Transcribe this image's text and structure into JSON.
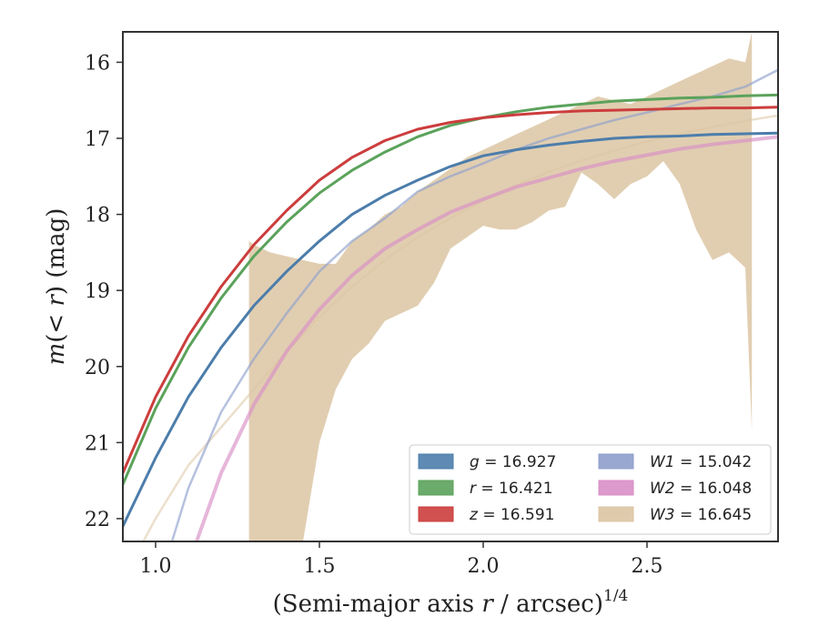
{
  "chart_data": {
    "type": "line",
    "title": "",
    "xlabel_pre": "(Semi-major axis ",
    "xlabel_var": "r",
    "xlabel_post": " / arcsec)",
    "xlabel_exp": "1/4",
    "ylabel_pre": "m",
    "ylabel_mid": "(< ",
    "ylabel_var": "r",
    "ylabel_post": ") (mag)",
    "xlim": [
      0.9,
      2.9
    ],
    "ylim": [
      22.3,
      15.6
    ],
    "y_inverted": true,
    "xticks": [
      1.0,
      1.5,
      2.0,
      2.5
    ],
    "xtick_labels": [
      "1.0",
      "1.5",
      "2.0",
      "2.5"
    ],
    "yticks": [
      16,
      17,
      18,
      19,
      20,
      21,
      22
    ],
    "ytick_labels": [
      "16",
      "17",
      "18",
      "19",
      "20",
      "21",
      "22"
    ],
    "grid": false,
    "legend_position": "lower-right",
    "legend_columns": 2,
    "series": [
      {
        "band": "g",
        "value": "= 16.927",
        "color": "#4c7dab",
        "x": [
          0.9,
          1.0,
          1.1,
          1.2,
          1.3,
          1.4,
          1.5,
          1.6,
          1.7,
          1.8,
          1.9,
          2.0,
          2.1,
          2.2,
          2.3,
          2.4,
          2.5,
          2.6,
          2.7,
          2.8,
          2.9
        ],
        "y": [
          22.1,
          21.2,
          20.4,
          19.75,
          19.2,
          18.75,
          18.35,
          18.0,
          17.75,
          17.55,
          17.37,
          17.23,
          17.15,
          17.09,
          17.04,
          17.0,
          16.98,
          16.97,
          16.95,
          16.94,
          16.93
        ]
      },
      {
        "band": "r",
        "value": "= 16.421",
        "color": "#5ba25b",
        "x": [
          0.9,
          1.0,
          1.1,
          1.2,
          1.3,
          1.4,
          1.5,
          1.6,
          1.7,
          1.8,
          1.9,
          2.0,
          2.1,
          2.2,
          2.3,
          2.4,
          2.5,
          2.6,
          2.7,
          2.8,
          2.9
        ],
        "y": [
          21.55,
          20.55,
          19.75,
          19.1,
          18.55,
          18.1,
          17.72,
          17.42,
          17.18,
          16.98,
          16.83,
          16.73,
          16.65,
          16.59,
          16.55,
          16.51,
          16.49,
          16.47,
          16.46,
          16.44,
          16.43
        ]
      },
      {
        "band": "z",
        "value": "= 16.591",
        "color": "#cc3d3d",
        "x": [
          0.9,
          1.0,
          1.1,
          1.2,
          1.3,
          1.4,
          1.5,
          1.6,
          1.7,
          1.8,
          1.9,
          2.0,
          2.1,
          2.2,
          2.3,
          2.4,
          2.5,
          2.6,
          2.7,
          2.8,
          2.9
        ],
        "y": [
          21.4,
          20.4,
          19.6,
          18.95,
          18.4,
          17.95,
          17.55,
          17.25,
          17.03,
          16.88,
          16.79,
          16.73,
          16.69,
          16.66,
          16.64,
          16.63,
          16.62,
          16.61,
          16.6,
          16.6,
          16.59
        ]
      },
      {
        "band": "W1",
        "value": "= 15.042",
        "color": "#8e9fcc",
        "x": [
          1.0,
          1.1,
          1.2,
          1.3,
          1.4,
          1.5,
          1.6,
          1.7,
          1.8,
          1.9,
          2.0,
          2.1,
          2.2,
          2.3,
          2.4,
          2.5,
          2.6,
          2.7,
          2.8,
          2.9
        ],
        "y": [
          23.0,
          21.6,
          20.6,
          19.9,
          19.3,
          18.75,
          18.35,
          18.05,
          17.7,
          17.5,
          17.33,
          17.15,
          17.0,
          16.88,
          16.76,
          16.66,
          16.55,
          16.45,
          16.32,
          16.1
        ]
      },
      {
        "band": "W2",
        "value": "= 16.048",
        "color": "#d98fc6",
        "x": [
          1.05,
          1.1,
          1.2,
          1.3,
          1.4,
          1.5,
          1.6,
          1.7,
          1.8,
          1.9,
          2.0,
          2.1,
          2.2,
          2.3,
          2.4,
          2.5,
          2.6,
          2.7,
          2.8,
          2.9
        ],
        "y": [
          23.5,
          22.6,
          21.4,
          20.5,
          19.8,
          19.25,
          18.8,
          18.45,
          18.2,
          17.97,
          17.8,
          17.64,
          17.52,
          17.4,
          17.3,
          17.22,
          17.14,
          17.08,
          17.03,
          16.98
        ]
      },
      {
        "band": "W3",
        "value": "= 16.645",
        "color": "#dcc5a3",
        "x": [
          0.9,
          1.0,
          1.1,
          1.2,
          1.3,
          1.4,
          1.5,
          1.6,
          1.7,
          1.8,
          1.9,
          2.0,
          2.1,
          2.2,
          2.3,
          2.4,
          2.5,
          2.6,
          2.7,
          2.8,
          2.9
        ],
        "y": [
          22.8,
          22.0,
          21.3,
          20.8,
          20.3,
          19.8,
          19.35,
          18.95,
          18.6,
          18.3,
          18.05,
          17.82,
          17.62,
          17.44,
          17.29,
          17.16,
          17.04,
          16.94,
          16.85,
          16.77,
          16.7
        ],
        "band_x": [
          1.285,
          1.3,
          1.35,
          1.4,
          1.45,
          1.5,
          1.55,
          1.6,
          1.65,
          1.7,
          1.75,
          1.8,
          1.85,
          1.9,
          1.95,
          2.0,
          2.05,
          2.1,
          2.15,
          2.2,
          2.25,
          2.3,
          2.35,
          2.4,
          2.45,
          2.5,
          2.55,
          2.6,
          2.65,
          2.7,
          2.75,
          2.8,
          2.82
        ],
        "band_upper": [
          18.35,
          18.4,
          18.5,
          18.55,
          18.6,
          18.65,
          18.65,
          18.35,
          18.2,
          18.0,
          17.9,
          17.7,
          17.55,
          17.4,
          17.25,
          17.15,
          17.05,
          16.95,
          16.85,
          16.75,
          16.65,
          16.55,
          16.45,
          16.5,
          16.55,
          16.45,
          16.35,
          16.25,
          16.15,
          16.05,
          15.95,
          16.0,
          15.6
        ],
        "band_lower": [
          22.6,
          22.6,
          22.6,
          22.4,
          22.3,
          21.0,
          20.3,
          19.9,
          19.7,
          19.4,
          19.3,
          19.2,
          18.9,
          18.45,
          18.3,
          18.15,
          18.2,
          18.2,
          18.1,
          17.95,
          17.9,
          17.45,
          17.6,
          17.8,
          17.6,
          17.5,
          17.3,
          17.6,
          18.2,
          18.6,
          18.5,
          18.7,
          20.85
        ]
      }
    ]
  }
}
